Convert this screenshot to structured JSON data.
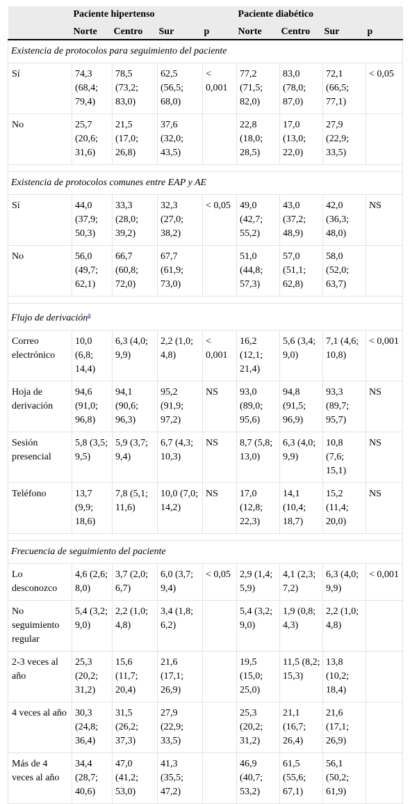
{
  "header": {
    "group1": "Paciente hipertenso",
    "group2": "Paciente diabético",
    "cols": [
      "Norte",
      "Centro",
      "Sur",
      "p",
      "Norte",
      "Centro",
      "Sur",
      "p"
    ]
  },
  "sections": [
    {
      "title": "Existencia de protocolos para seguimiento del paciente",
      "footnote": "",
      "rows": [
        {
          "label": "Sí",
          "cells": [
            "74,3 (68,4; 79,4)",
            "78,5 (73,2; 83,0)",
            "62,5 (56,5; 68,0)",
            "< 0,001",
            "77,2 (71,5; 82,0)",
            "83,0 (78,0; 87,0)",
            "72,1 (66,5; 77,1)",
            "< 0,05"
          ]
        },
        {
          "label": "No",
          "cells": [
            "25,7 (20,6; 31,6)",
            "21,5 (17,0; 26,8)",
            "37,6 (32,0; 43,5)",
            "",
            "22,8 (18,0; 28,5)",
            "17,0 (13,0; 22,0)",
            "27,9 (22,9; 33,5)",
            ""
          ]
        }
      ]
    },
    {
      "title": "Existencia de protocolos comunes entre EAP y AE",
      "footnote": "",
      "rows": [
        {
          "label": "Sí",
          "cells": [
            "44,0 (37,9; 50,3)",
            "33,3 (28,0; 39,2)",
            "32,3 (27,0; 38,2)",
            "< 0,05",
            "49,0 (42,7; 55,2)",
            "43,0 (37,2; 48,9)",
            "42,0 (36,3; 48,0)",
            "NS"
          ]
        },
        {
          "label": "No",
          "cells": [
            "56,0 (49,7; 62,1)",
            "66,7 (60,8; 72,0)",
            "67,7 (61,9; 73,0)",
            "",
            "51,0 (44,8; 57,3)",
            "57,0 (51,1; 62,8)",
            "58,0 (52,0; 63,7)",
            ""
          ]
        }
      ]
    },
    {
      "title": "Flujo de derivación",
      "footnote": "a",
      "rows": [
        {
          "label": "Correo electrónico",
          "cells": [
            "10,0 (6,8; 14,4)",
            "6,3 (4,0; 9,9)",
            "2,2 (1,0; 4,8)",
            "< 0,001",
            "16,2 (12,1; 21,4)",
            "5,6 (3,4; 9,0)",
            "7,1 (4,6; 10,8)",
            "< 0,001"
          ]
        },
        {
          "label": "Hoja de derivación",
          "cells": [
            "94,6 (91,0; 96,8)",
            "94,1 (90,6; 96,3)",
            "95,2 (91,9; 97,2)",
            "NS",
            "93,0 (89,0; 95,6)",
            "94,8 (91,5; 96,9)",
            "93,3 (89,7; 95,7)",
            "NS"
          ]
        },
        {
          "label": "Sesión presencial",
          "cells": [
            "5,8 (3,5; 9,5)",
            "5,9 (3,7; 9,4)",
            "6,7 (4,3; 10,3)",
            "NS",
            "8,7 (5,8; 13,0)",
            "6,3 (4,0; 9,9)",
            "10,8 (7,6; 15,1)",
            "NS"
          ]
        },
        {
          "label": "Teléfono",
          "cells": [
            "13,7 (9,9; 18,6)",
            "7,8 (5,1; 11,6)",
            "10,0 (7,0; 14,2)",
            "NS",
            "17,0 (12,8; 22,3)",
            "14,1 (10,4; 18,7)",
            "15,2 (11,4; 20,0)",
            "NS"
          ]
        }
      ]
    },
    {
      "title": "Frecuencia de seguimiento del paciente",
      "footnote": "",
      "rows": [
        {
          "label": "Lo desconozco",
          "cells": [
            "4,6 (2,6; 8,0)",
            "3,7 (2,0; 6,7)",
            "6,0 (3,7; 9,4)",
            "< 0,05",
            "2,9 (1,4; 5,9)",
            "4,1 (2,3; 7,2)",
            "6,3 (4,0; 9,9)",
            "< 0,001"
          ]
        },
        {
          "label": "No seguimiento regular",
          "cells": [
            "5,4 (3,2; 9,0)",
            "2,2 (1,0; 4,8)",
            "3,4 (1,8; 6,2)",
            "",
            "5,4 (3,2; 9,0)",
            "1,9 (0,8; 4,3)",
            "2,2 (1,0; 4,8)",
            ""
          ]
        },
        {
          "label": "2-3 veces al año",
          "cells": [
            "25,3 (20,2; 31,2)",
            "15,6 (11,7; 20,4)",
            "21,6 (17,1; 26,9)",
            "",
            "19,5 (15,0; 25,0)",
            "11,5 (8,2; 15,3)",
            "13,8 (10,2; 18,4)",
            ""
          ]
        },
        {
          "label": "4 veces al año",
          "cells": [
            "30,3 (24,8; 36,4)",
            "31,5 (26,2; 37,3)",
            "27,9 (22,9; 33,5)",
            "",
            "25,3 (20,2; 31,2)",
            "21,1 (16,7; 26,4)",
            "21,6 (17,1; 26,9)",
            ""
          ]
        },
        {
          "label": "Más de 4 veces al año",
          "cells": [
            "34,4 (28,7; 40,6)",
            "47,0 (41,2; 53,0)",
            "41,3 (35,5; 47,2)",
            "",
            "46,9 (40,7; 53,2)",
            "61,5 (55,6; 67,1)",
            "56,1 (50,2; 61,9)",
            ""
          ]
        }
      ]
    }
  ]
}
